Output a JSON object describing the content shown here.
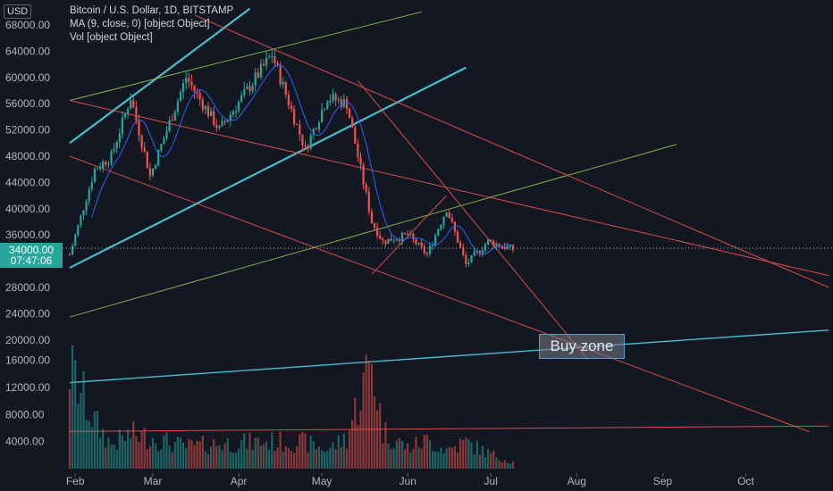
{
  "header": {
    "currency": "USD",
    "title": "Bitcoin / U.S. Dollar, 1D, BITSTAMP",
    "indicator_ma": "MA (9, close, 0) [object Object]",
    "indicator_vol": "Vol [object Object]"
  },
  "price_tag": {
    "price": "34000.00",
    "countdown": "07:47:06"
  },
  "annotation": {
    "text": "Buy zone"
  },
  "colors": {
    "background": "#131722",
    "up": "#26a69a",
    "down": "#ef5350",
    "ma": "#2962ff",
    "cyan_line": "#4dd0e1",
    "red_line": "#f0524f",
    "green_line": "#8bc34a"
  },
  "chart_data": {
    "type": "candlestick",
    "y_ticks": [
      "68000.00",
      "64000.00",
      "60000.00",
      "56000.00",
      "52000.00",
      "48000.00",
      "44000.00",
      "40000.00",
      "36000.00",
      "28000.00",
      "24000.00",
      "20000.00",
      "16000.00",
      "12000.00",
      "8000.00",
      "4000.00"
    ],
    "x_ticks": [
      "Feb",
      "Mar",
      "Apr",
      "May",
      "Jun",
      "Jul",
      "Aug",
      "Sep",
      "Oct"
    ],
    "ylim": [
      2000,
      70000
    ],
    "x_start": "2021-01-30",
    "series": [
      {
        "name": "price",
        "anchors": [
          [
            "2021-01-30",
            33000
          ],
          [
            "2021-02-08",
            46000
          ],
          [
            "2021-02-14",
            48000
          ],
          [
            "2021-02-21",
            57000
          ],
          [
            "2021-02-28",
            45000
          ],
          [
            "2021-03-13",
            60000
          ],
          [
            "2021-03-25",
            52000
          ],
          [
            "2021-04-13",
            63500
          ],
          [
            "2021-04-25",
            49000
          ],
          [
            "2021-05-03",
            57000
          ],
          [
            "2021-05-10",
            56000
          ],
          [
            "2021-05-19",
            38000
          ],
          [
            "2021-05-23",
            35000
          ],
          [
            "2021-06-01",
            36000
          ],
          [
            "2021-06-08",
            33000
          ],
          [
            "2021-06-15",
            40000
          ],
          [
            "2021-06-22",
            31500
          ],
          [
            "2021-06-30",
            35000
          ],
          [
            "2021-07-09",
            33800
          ]
        ]
      },
      {
        "name": "volume",
        "anchors": [
          [
            "2021-01-30",
            16000
          ],
          [
            "2021-02-08",
            7500
          ],
          [
            "2021-02-14",
            3800
          ],
          [
            "2021-02-21",
            5500
          ],
          [
            "2021-02-28",
            5000
          ],
          [
            "2021-03-13",
            3500
          ],
          [
            "2021-03-25",
            4000
          ],
          [
            "2021-04-13",
            4300
          ],
          [
            "2021-04-25",
            4200
          ],
          [
            "2021-05-03",
            3000
          ],
          [
            "2021-05-10",
            5000
          ],
          [
            "2021-05-19",
            17500
          ],
          [
            "2021-05-23",
            6000
          ],
          [
            "2021-06-01",
            3300
          ],
          [
            "2021-06-08",
            4500
          ],
          [
            "2021-06-15",
            3000
          ],
          [
            "2021-06-22",
            4200
          ],
          [
            "2021-06-30",
            2500
          ],
          [
            "2021-07-09",
            1000
          ]
        ]
      }
    ],
    "trendlines": [
      {
        "color": "cyan_line",
        "from": [
          "2021-01-30",
          50000
        ],
        "to": [
          "2021-04-05",
          70500
        ]
      },
      {
        "color": "cyan_line",
        "from": [
          "2021-01-30",
          31000
        ],
        "to": [
          "2021-06-22",
          61500
        ]
      },
      {
        "color": "cyan_line",
        "from": [
          "2021-01-30",
          13500
        ],
        "to": [
          "2021-10-31",
          21500
        ]
      },
      {
        "color": "green_line",
        "from": [
          "2021-01-30",
          56500
        ],
        "to": [
          "2021-06-06",
          70000
        ]
      },
      {
        "color": "green_line",
        "from": [
          "2021-01-30",
          23500
        ],
        "to": [
          "2021-09-06",
          49800
        ]
      },
      {
        "color": "red_line",
        "from": [
          "2021-03-16",
          69500
        ],
        "to": [
          "2021-10-31",
          28000
        ]
      },
      {
        "color": "red_line",
        "from": [
          "2021-01-30",
          56500
        ],
        "to": [
          "2021-10-31",
          29800
        ]
      },
      {
        "color": "red_line",
        "from": [
          "2021-01-30",
          48000
        ],
        "to": [
          "2021-10-24",
          6000
        ]
      },
      {
        "color": "red_line",
        "from": [
          "2021-05-14",
          59500
        ],
        "to": [
          "2021-08-05",
          17000
        ]
      },
      {
        "color": "red_line",
        "from": [
          "2021-05-19",
          30000
        ],
        "to": [
          "2021-06-15",
          42000
        ]
      },
      {
        "color": "red_line",
        "from": [
          "2021-01-30",
          5500
        ],
        "to": [
          "2021-10-31",
          6300
        ]
      }
    ]
  }
}
